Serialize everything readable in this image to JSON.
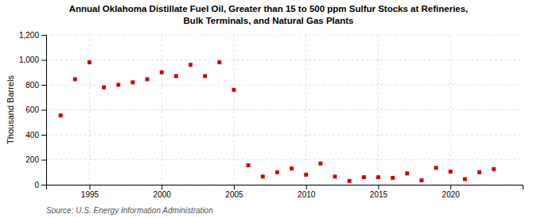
{
  "chart_data": {
    "type": "scatter",
    "title": "Annual Oklahoma Distillate Fuel Oil, Greater than 15 to 500 ppm Sulfur Stocks at Refineries,\nBulk Terminals, and Natural Gas Plants",
    "ylabel": "Thousand Barrels",
    "source": "Source: U.S. Energy Information Administration",
    "x": [
      1993,
      1994,
      1995,
      1996,
      1997,
      1998,
      1999,
      2000,
      2001,
      2002,
      2003,
      2004,
      2005,
      2006,
      2007,
      2008,
      2009,
      2010,
      2011,
      2012,
      2013,
      2014,
      2015,
      2016,
      2017,
      2018,
      2019,
      2020,
      2021,
      2022,
      2023
    ],
    "values": [
      555,
      845,
      980,
      780,
      800,
      820,
      845,
      900,
      870,
      960,
      870,
      980,
      760,
      155,
      65,
      100,
      130,
      80,
      170,
      65,
      30,
      60,
      60,
      55,
      90,
      35,
      135,
      105,
      45,
      100,
      125
    ],
    "color": "#cc0000",
    "marker": "square",
    "xlim": [
      1992,
      2025
    ],
    "xticks": [
      1995,
      2000,
      2005,
      2010,
      2015,
      2020
    ],
    "ylim": [
      0,
      1200
    ],
    "yticks": [
      0,
      200,
      400,
      600,
      800,
      {
        "value": 1000,
        "label": "1,000"
      },
      {
        "value": 1200,
        "label": "1,200"
      }
    ],
    "grid": true
  }
}
